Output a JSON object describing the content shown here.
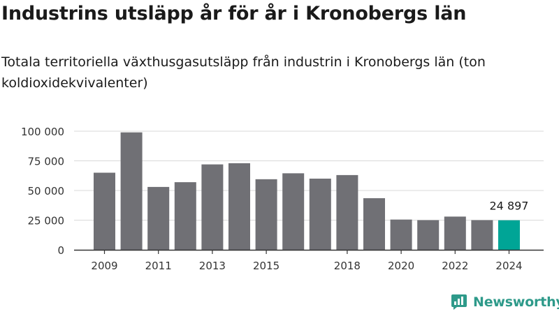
{
  "header": {
    "title": "Industrins utsläpp år för år i Kronobergs län",
    "subtitle": "Totala territoriella växthusgasutsläpp från industrin i Kronobergs län (ton koldioxidekvivalenter)"
  },
  "brand": {
    "name": "Newsworthy",
    "icon": "newsworthy-logo-icon"
  },
  "colors": {
    "bar": "#707075",
    "highlight": "#00a596",
    "grid": "#d9d9d9",
    "axis": "#333333"
  },
  "chart_data": {
    "type": "bar",
    "x": [
      2009,
      2010,
      2011,
      2012,
      2013,
      2014,
      2015,
      2016,
      2017,
      2018,
      2019,
      2020,
      2021,
      2022,
      2023,
      2024
    ],
    "values": [
      65000,
      99000,
      53000,
      57000,
      72000,
      73000,
      59500,
      64500,
      60000,
      63000,
      43500,
      25500,
      25000,
      28000,
      25000,
      24897
    ],
    "xtick_labels": [
      "2009",
      "2011",
      "2013",
      "2015",
      "2018",
      "2020",
      "2022",
      "2024"
    ],
    "ylim": [
      0,
      100000
    ],
    "yticks": [
      0,
      25000,
      50000,
      75000,
      100000
    ],
    "ytick_labels": [
      "0",
      "25 000",
      "50 000",
      "75 000",
      "100 000"
    ],
    "highlight": {
      "x": 2024,
      "label": "24 897"
    },
    "grid": true
  }
}
